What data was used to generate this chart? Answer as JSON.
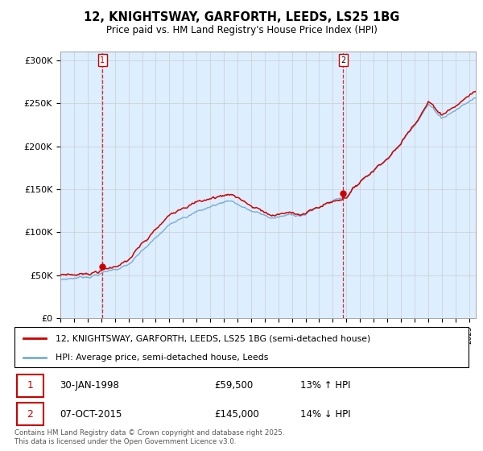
{
  "title": "12, KNIGHTSWAY, GARFORTH, LEEDS, LS25 1BG",
  "subtitle": "Price paid vs. HM Land Registry's House Price Index (HPI)",
  "ylabel_ticks": [
    "£0",
    "£50K",
    "£100K",
    "£150K",
    "£200K",
    "£250K",
    "£300K"
  ],
  "ylim": [
    0,
    310000
  ],
  "xlim_start": 1995.0,
  "xlim_end": 2025.5,
  "sale1_date": 1998.08,
  "sale1_price": 59500,
  "sale2_date": 2015.77,
  "sale2_price": 145000,
  "sale1_label": "1",
  "sale2_label": "2",
  "sale_color": "#cc0000",
  "hpi_color": "#7aadd4",
  "legend_sale": "12, KNIGHTSWAY, GARFORTH, LEEDS, LS25 1BG (semi-detached house)",
  "legend_hpi": "HPI: Average price, semi-detached house, Leeds",
  "footnote": "Contains HM Land Registry data © Crown copyright and database right 2025.\nThis data is licensed under the Open Government Licence v3.0.",
  "plot_bg_color": "#ddeeff",
  "background_color": "#ffffff"
}
